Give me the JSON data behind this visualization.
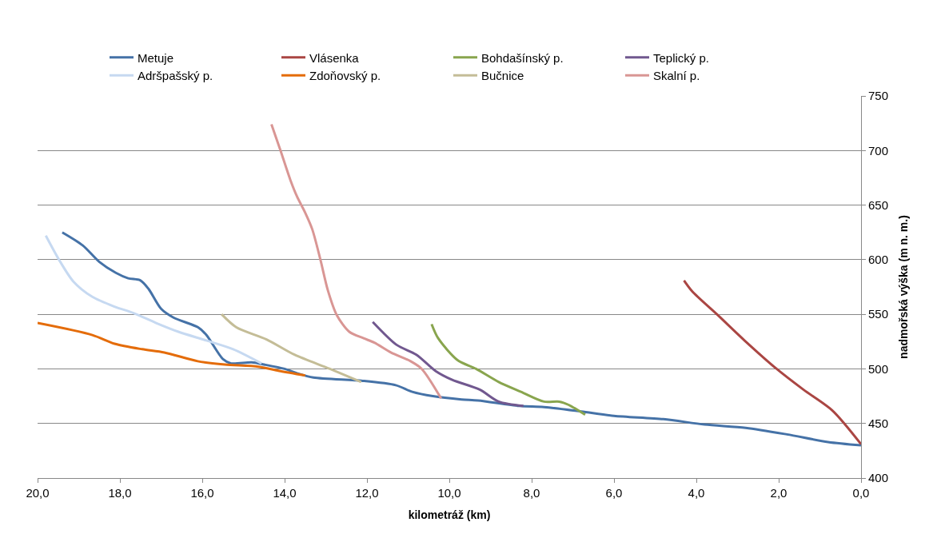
{
  "chart_data": {
    "type": "line",
    "xlabel": "kilometráž (km)",
    "ylabel": "nadmořská výška (m n. m.)",
    "xlim": [
      20,
      0
    ],
    "xticks": [
      {
        "value": 20,
        "label": "20,0"
      },
      {
        "value": 18,
        "label": "18,0"
      },
      {
        "value": 16,
        "label": "16,0"
      },
      {
        "value": 14,
        "label": "14,0"
      },
      {
        "value": 12,
        "label": "12,0"
      },
      {
        "value": 10,
        "label": "10,0"
      },
      {
        "value": 8,
        "label": "8,0"
      },
      {
        "value": 6,
        "label": "6,0"
      },
      {
        "value": 4,
        "label": "4,0"
      },
      {
        "value": 2,
        "label": "2,0"
      },
      {
        "value": 0,
        "label": "0,0"
      }
    ],
    "ylim": [
      400,
      750
    ],
    "yticks": [
      400,
      450,
      500,
      550,
      600,
      650,
      700,
      750
    ],
    "grid": "y",
    "legend": "top",
    "marker": "none",
    "line_style": "solid",
    "series": [
      {
        "name": "Metuje",
        "color": "#4572a7",
        "x": [
          19.4,
          18.9,
          18.5,
          18.1,
          17.8,
          17.5,
          17.3,
          17.0,
          16.7,
          16.1,
          15.9,
          15.5,
          15.3,
          14.8,
          14.5,
          14.0,
          13.7,
          13.3,
          12.1,
          11.3,
          10.9,
          10.4,
          9.7,
          9.3,
          8.3,
          7.7,
          6.8,
          6.0,
          4.8,
          3.8,
          2.8,
          1.8,
          0.8,
          0
        ],
        "values": [
          625,
          613,
          598,
          588,
          583,
          581,
          573,
          555,
          547,
          538,
          531,
          509,
          505,
          506,
          504,
          500,
          496,
          492,
          489,
          485,
          479,
          475,
          472,
          471,
          466,
          465,
          461,
          457,
          454,
          449,
          446,
          440,
          433,
          430
        ]
      },
      {
        "name": "Vlásenka",
        "color": "#aa4643",
        "x": [
          4.3,
          4.1,
          3.5,
          2.8,
          2.05,
          1.4,
          0.7,
          0
        ],
        "values": [
          581,
          571,
          550,
          525,
          500,
          481,
          462,
          431
        ]
      },
      {
        "name": "Bohdašínský p.",
        "color": "#89a54e",
        "x": [
          10.43,
          10.27,
          9.8,
          9.35,
          8.8,
          8.26,
          7.7,
          7.33,
          7.1,
          6.7
        ],
        "values": [
          541,
          528,
          508,
          500,
          488,
          479,
          470,
          470,
          467,
          458
        ]
      },
      {
        "name": "Teplický p.",
        "color": "#71588f",
        "x": [
          11.86,
          11.28,
          10.8,
          10.33,
          9.93,
          9.26,
          8.8,
          8.2
        ],
        "values": [
          543,
          522,
          513,
          498,
          490,
          481,
          470,
          466
        ]
      },
      {
        "name": "Adršpašský p.",
        "color": "#c6d9f1",
        "x": [
          19.8,
          19.48,
          19.13,
          18.67,
          18.13,
          17.66,
          17.12,
          16.58,
          15.9,
          15.25,
          14.56
        ],
        "values": [
          622,
          600,
          580,
          566,
          557,
          551,
          542,
          534,
          526,
          518,
          505
        ]
      },
      {
        "name": "Zdoňovský p.",
        "color": "#e46c0a",
        "x": [
          20,
          18.67,
          18.13,
          17.46,
          16.92,
          16.11,
          15.45,
          14.64,
          14.1,
          13.5
        ],
        "values": [
          542,
          531,
          523,
          518,
          515,
          507,
          504,
          502,
          498,
          494
        ]
      },
      {
        "name": "Bučnice",
        "color": "#c4bd97",
        "x": [
          15.53,
          15.17,
          14.44,
          13.76,
          12.9,
          12.14
        ],
        "values": [
          550,
          538,
          527,
          513,
          500,
          488
        ]
      },
      {
        "name": "Skalní p.",
        "color": "#d99694",
        "x": [
          14.32,
          14.1,
          13.86,
          13.7,
          13.5,
          13.33,
          13.13,
          12.95,
          12.73,
          12.43,
          12.08,
          11.82,
          11.42,
          10.94,
          10.67,
          10.2
        ],
        "values": [
          724,
          700,
          673,
          658,
          643,
          628,
          600,
          572,
          549,
          534,
          528,
          524,
          515,
          507,
          500,
          473
        ]
      }
    ]
  }
}
